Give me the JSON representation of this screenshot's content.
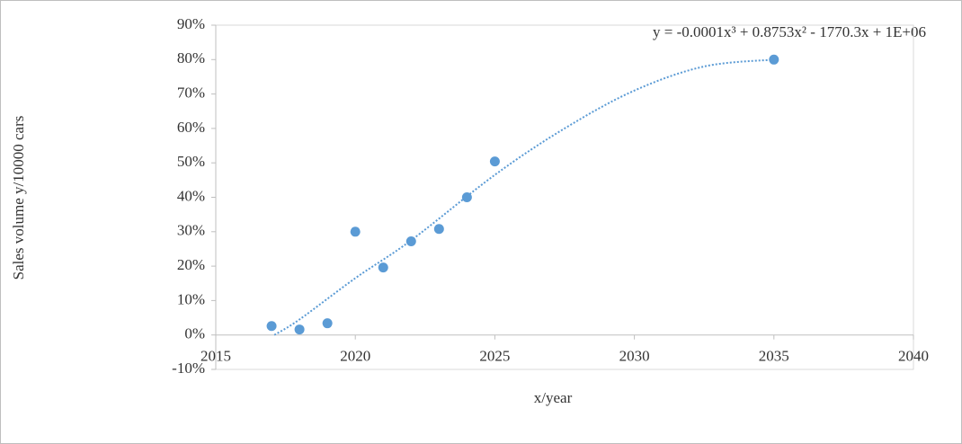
{
  "chart_data": {
    "type": "scatter",
    "x_label": "x/year",
    "y_label": "Sales volume  y/10000  cars",
    "annotation": "y = -0.0001x³  + 0.8753x²  - 1770.3x  + 1E+06",
    "x": [
      2017,
      2018,
      2019,
      2020,
      2021,
      2022,
      2023,
      2024,
      2025,
      2035
    ],
    "values": [
      2.6,
      1.6,
      3.4,
      30,
      19.6,
      27.2,
      30.8,
      40,
      50.4,
      80
    ],
    "color": "#5b9bd5",
    "trendline": {
      "x": [
        2017.1,
        2018,
        2020,
        2022,
        2025,
        2027.5,
        2030,
        2032.5,
        2035
      ],
      "values": [
        0,
        4.5,
        16.5,
        27.5,
        46.5,
        60,
        71,
        78,
        80
      ],
      "color": "#5b9bd5",
      "style": "dotted"
    },
    "xlim": [
      2015,
      2040
    ],
    "xticks": [
      2015,
      2020,
      2025,
      2030,
      2035,
      2040
    ],
    "ylim": [
      -10,
      90
    ],
    "yticks": [
      {
        "value": -10,
        "label": "-10%"
      },
      {
        "value": 0,
        "label": "0%"
      },
      {
        "value": 10,
        "label": "10%"
      },
      {
        "value": 20,
        "label": "20%"
      },
      {
        "value": 30,
        "label": "30%"
      },
      {
        "value": 40,
        "label": "40%"
      },
      {
        "value": 50,
        "label": "50%"
      },
      {
        "value": 60,
        "label": "60%"
      },
      {
        "value": 70,
        "label": "70%"
      },
      {
        "value": 80,
        "label": "80%"
      },
      {
        "value": 90,
        "label": "90%"
      }
    ],
    "grid": false
  }
}
